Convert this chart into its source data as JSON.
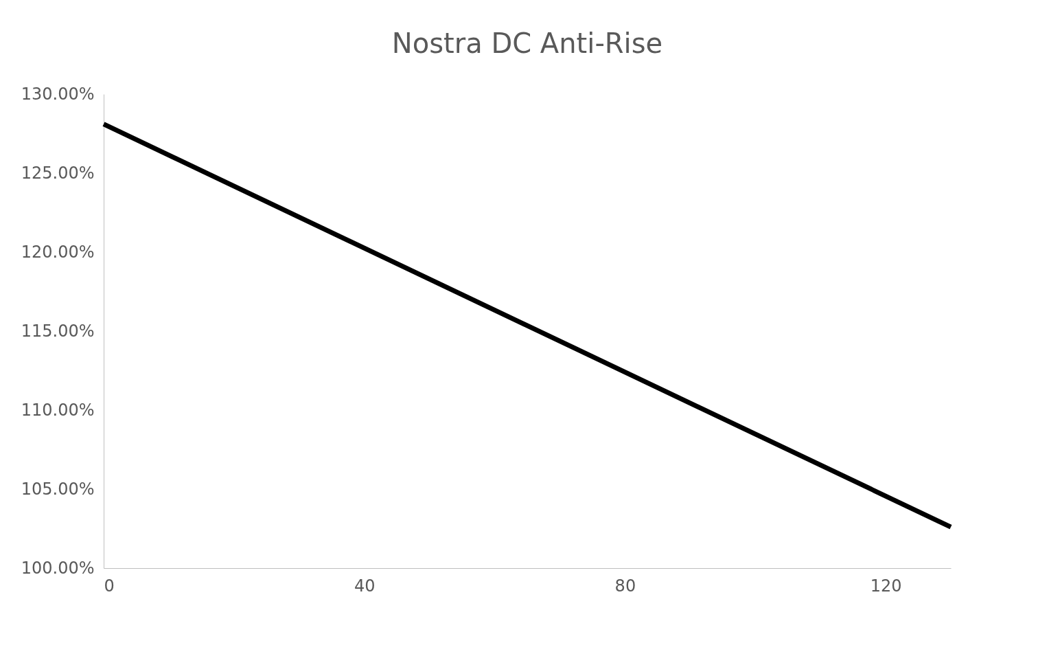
{
  "chart_data": {
    "type": "line",
    "title": "Nostra DC Anti-Rise",
    "x": [
      0,
      130
    ],
    "series": [
      {
        "color": "#000000",
        "values": [
          128.1,
          102.6
        ]
      }
    ],
    "xlim": [
      0,
      130
    ],
    "xticks": [
      0,
      40,
      80,
      120
    ],
    "ylim": [
      100,
      130
    ],
    "yticks": [
      {
        "value": 100,
        "label": "100.00%"
      },
      {
        "value": 105,
        "label": "105.00%"
      },
      {
        "value": 110,
        "label": "110.00%"
      },
      {
        "value": 115,
        "label": "115.00%"
      },
      {
        "value": 120,
        "label": "120.00%"
      },
      {
        "value": 125,
        "label": "125.00%"
      },
      {
        "value": 130,
        "label": "130.00%"
      }
    ],
    "grid": false,
    "marker": "none",
    "line_style": "solid"
  }
}
